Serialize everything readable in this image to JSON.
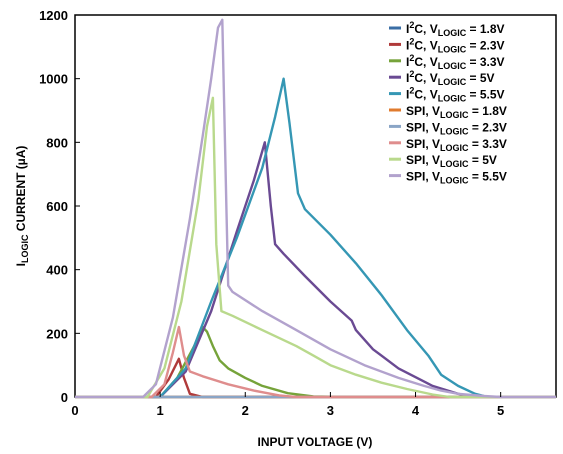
{
  "chart_data": {
    "type": "line",
    "xlabel": "INPUT VOLTAGE (V)",
    "ylabel": {
      "main": "I",
      "sub": "LOGIC",
      "rest": " CURRENT (µA)"
    },
    "xlim": [
      0,
      5.65
    ],
    "ylim": [
      0,
      1200
    ],
    "xticks": [
      0,
      1,
      2,
      3,
      4,
      5
    ],
    "yticks": [
      0,
      200,
      400,
      600,
      800,
      1000,
      1200
    ],
    "grid": false,
    "legend_position": "top-right",
    "series": [
      {
        "name": "I²C, VLOGIC = 1.8V",
        "legend": {
          "prefix": "I",
          "sup": "2",
          "mid": "C, V",
          "sub": "LOGIC",
          "suffix": " = 1.8V"
        },
        "color": "#3a6ea5",
        "x": [
          0,
          5.65
        ],
        "y": [
          0,
          0
        ]
      },
      {
        "name": "I²C, VLOGIC = 2.3V",
        "legend": {
          "prefix": "I",
          "sup": "2",
          "mid": "C, V",
          "sub": "LOGIC",
          "suffix": " = 2.3V"
        },
        "color": "#b03a3a",
        "x": [
          0,
          0.95,
          1.1,
          1.22,
          1.28,
          1.35,
          1.5,
          5.65
        ],
        "y": [
          0,
          0,
          55,
          120,
          60,
          10,
          0,
          0
        ]
      },
      {
        "name": "I²C, VLOGIC = 3.3V",
        "legend": {
          "prefix": "I",
          "sup": "2",
          "mid": "C, V",
          "sub": "LOGIC",
          "suffix": " = 3.3V"
        },
        "color": "#76a33a",
        "x": [
          0,
          1.0,
          1.2,
          1.4,
          1.5,
          1.55,
          1.62,
          1.7,
          1.8,
          2.0,
          2.2,
          2.5,
          2.8,
          3.2,
          5.65
        ],
        "y": [
          0,
          0,
          60,
          160,
          220,
          205,
          160,
          115,
          90,
          60,
          35,
          12,
          2,
          0,
          0
        ]
      },
      {
        "name": "I²C, VLOGIC = 5V",
        "legend": {
          "prefix": "I",
          "sup": "2",
          "mid": "C, V",
          "sub": "LOGIC",
          "suffix": " = 5V"
        },
        "color": "#6a4a93",
        "x": [
          0,
          1.0,
          1.3,
          1.6,
          1.9,
          2.1,
          2.23,
          2.3,
          2.35,
          2.45,
          2.7,
          3.0,
          3.25,
          3.3,
          3.5,
          3.8,
          4.2,
          4.5,
          4.7,
          5.65
        ],
        "y": [
          0,
          0,
          80,
          270,
          520,
          680,
          800,
          600,
          480,
          450,
          380,
          300,
          240,
          210,
          150,
          90,
          35,
          10,
          0,
          0
        ]
      },
      {
        "name": "I²C, VLOGIC = 5.5V",
        "legend": {
          "prefix": "I",
          "sup": "2",
          "mid": "C, V",
          "sub": "LOGIC",
          "suffix": " = 5.5V"
        },
        "color": "#3597b4",
        "x": [
          0,
          1.0,
          1.3,
          1.6,
          1.9,
          2.2,
          2.35,
          2.45,
          2.52,
          2.62,
          2.7,
          3.0,
          3.3,
          3.6,
          3.9,
          4.15,
          4.3,
          4.5,
          4.7,
          4.85,
          5.65
        ],
        "y": [
          0,
          0,
          90,
          300,
          500,
          720,
          880,
          1000,
          860,
          640,
          590,
          510,
          420,
          320,
          210,
          130,
          70,
          35,
          10,
          0,
          0
        ]
      },
      {
        "name": "SPI, VLOGIC = 1.8V",
        "legend": {
          "prefix": "SPI, V",
          "sub": "LOGIC",
          "suffix": " = 1.8V"
        },
        "color": "#e07b2e",
        "x": [
          0,
          5.65
        ],
        "y": [
          0,
          0
        ]
      },
      {
        "name": "SPI, VLOGIC = 2.3V",
        "legend": {
          "prefix": "SPI, V",
          "sub": "LOGIC",
          "suffix": " = 2.3V"
        },
        "color": "#8aa5c6",
        "x": [
          0,
          5.65
        ],
        "y": [
          0,
          0
        ]
      },
      {
        "name": "SPI, VLOGIC = 3.3V",
        "legend": {
          "prefix": "SPI, V",
          "sub": "LOGIC",
          "suffix": " = 3.3V"
        },
        "color": "#df8d8d",
        "x": [
          0,
          0.9,
          1.05,
          1.15,
          1.22,
          1.28,
          1.35,
          1.5,
          1.8,
          2.1,
          2.4,
          2.6,
          5.65
        ],
        "y": [
          0,
          0,
          40,
          140,
          220,
          130,
          80,
          65,
          40,
          20,
          5,
          0,
          0
        ]
      },
      {
        "name": "SPI, VLOGIC = 5V",
        "legend": {
          "prefix": "SPI, V",
          "sub": "LOGIC",
          "suffix": " = 5V"
        },
        "color": "#b9d98c",
        "x": [
          0,
          0.85,
          1.05,
          1.25,
          1.45,
          1.55,
          1.62,
          1.66,
          1.72,
          1.85,
          2.2,
          2.6,
          2.8,
          3.0,
          3.3,
          3.6,
          3.9,
          4.2,
          4.4,
          5.65
        ],
        "y": [
          0,
          0,
          90,
          300,
          620,
          850,
          940,
          480,
          270,
          255,
          210,
          160,
          130,
          100,
          70,
          45,
          25,
          8,
          0,
          0
        ]
      },
      {
        "name": "SPI, VLOGIC = 5.5V",
        "legend": {
          "prefix": "SPI, V",
          "sub": "LOGIC",
          "suffix": " = 5.5V"
        },
        "color": "#b2a2cd",
        "x": [
          0,
          0.8,
          0.95,
          1.15,
          1.35,
          1.5,
          1.6,
          1.68,
          1.73,
          1.78,
          1.8,
          1.85,
          2.2,
          2.6,
          3.0,
          3.4,
          3.8,
          4.1,
          4.3,
          4.5,
          4.8,
          5.0,
          5.65
        ],
        "y": [
          0,
          0,
          40,
          250,
          560,
          820,
          1000,
          1160,
          1185,
          580,
          350,
          330,
          270,
          210,
          150,
          100,
          60,
          35,
          20,
          10,
          3,
          0,
          0
        ]
      }
    ]
  }
}
